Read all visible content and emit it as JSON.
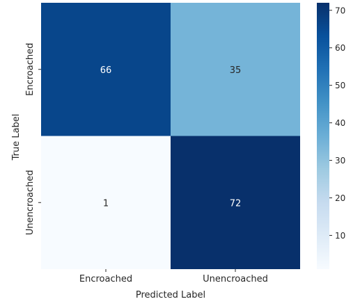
{
  "chart_data": {
    "type": "heatmap",
    "title": "",
    "xlabel": "Predicted Label",
    "ylabel": "True Label",
    "x_categories": [
      "Encroached",
      "Unencroached"
    ],
    "y_categories": [
      "Encroached",
      "Unencroached"
    ],
    "values": [
      [
        66,
        35
      ],
      [
        1,
        72
      ]
    ],
    "colormap": "Blues",
    "colorbar": {
      "min": 1,
      "max": 72,
      "ticks": [
        10,
        20,
        30,
        40,
        50,
        60,
        70
      ]
    },
    "colors": {
      "cell_66": "#08468b",
      "cell_35": "#75b4d8",
      "cell_1": "#f7fbff",
      "cell_72": "#08306b",
      "text_dark": "#262626",
      "text_light": "#ffffff"
    }
  }
}
